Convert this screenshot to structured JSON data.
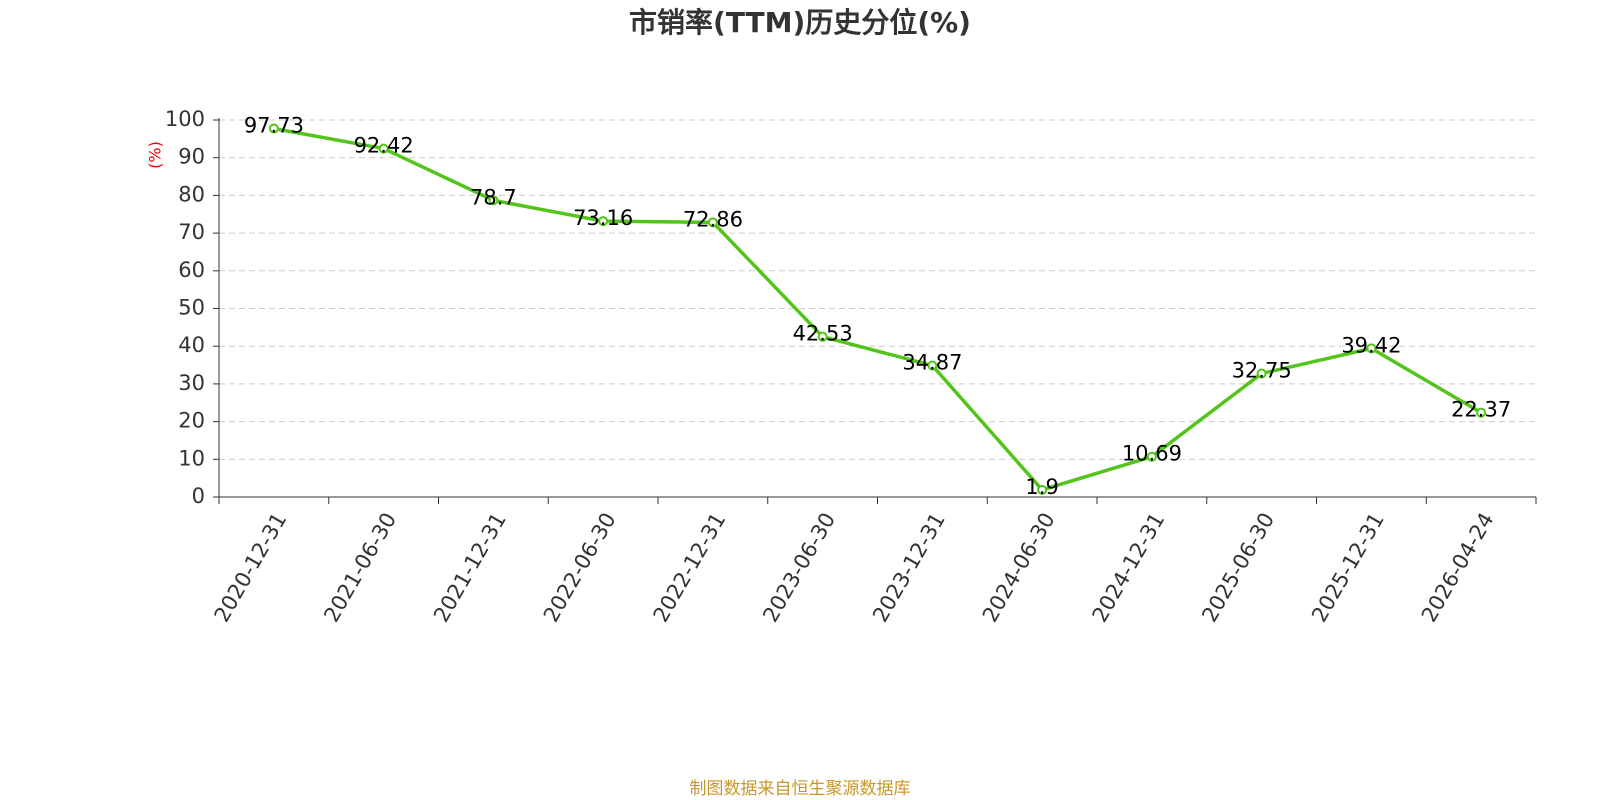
{
  "chart_data": {
    "type": "line",
    "title": "市销率(TTM)历史分位(%)",
    "y_axis_label": "(%)",
    "categories": [
      "2020-12-31",
      "2021-06-30",
      "2021-12-31",
      "2022-06-30",
      "2022-12-31",
      "2023-06-30",
      "2023-12-31",
      "2024-06-30",
      "2024-12-31",
      "2025-06-30",
      "2025-12-31",
      "2026-04-24"
    ],
    "series": [
      {
        "name": "市销率(TTM)历史分位",
        "color": "#52c41a",
        "values": [
          97.73,
          92.42,
          78.7,
          73.16,
          72.86,
          42.53,
          34.87,
          1.9,
          10.69,
          32.75,
          39.42,
          22.37
        ]
      }
    ],
    "ylim": [
      0,
      100
    ],
    "yticks": [
      0,
      10,
      20,
      30,
      40,
      50,
      60,
      70,
      80,
      90,
      100
    ],
    "grid": true,
    "source": "制图数据来自恒生聚源数据库"
  }
}
